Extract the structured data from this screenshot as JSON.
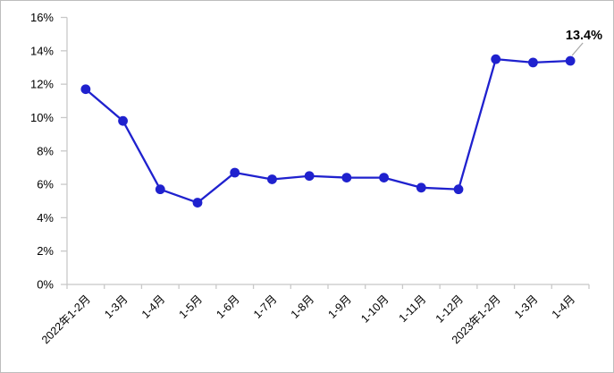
{
  "chart_data": {
    "type": "line",
    "title": "",
    "categories": [
      "2022年1-2月",
      "1-3月",
      "1-4月",
      "1-5月",
      "1-6月",
      "1-7月",
      "1-8月",
      "1-9月",
      "1-10月",
      "1-11月",
      "1-12月",
      "2023年1-2月",
      "1-3月",
      "1-4月"
    ],
    "values": [
      11.7,
      9.8,
      5.7,
      4.9,
      6.7,
      6.3,
      6.5,
      6.4,
      6.4,
      5.8,
      5.7,
      13.5,
      13.3,
      13.4
    ],
    "ylim": [
      0,
      16
    ],
    "ytick_step": 2,
    "ytick_labels": [
      "0%",
      "2%",
      "4%",
      "6%",
      "8%",
      "10%",
      "12%",
      "14%",
      "16%"
    ],
    "grid": false,
    "legend": "none",
    "marker": "circle",
    "annotation": {
      "text": "13.4%",
      "point_index": 13
    },
    "colors": {
      "line": "#1F21CE",
      "marker": "#1F21CE",
      "axis": "#C8C8C8",
      "text": "#000000",
      "annotation_text": "#000000",
      "leader_line": "#A6A6A6",
      "frame_border": "#BDBDBD",
      "background": "#FFFFFF"
    }
  }
}
